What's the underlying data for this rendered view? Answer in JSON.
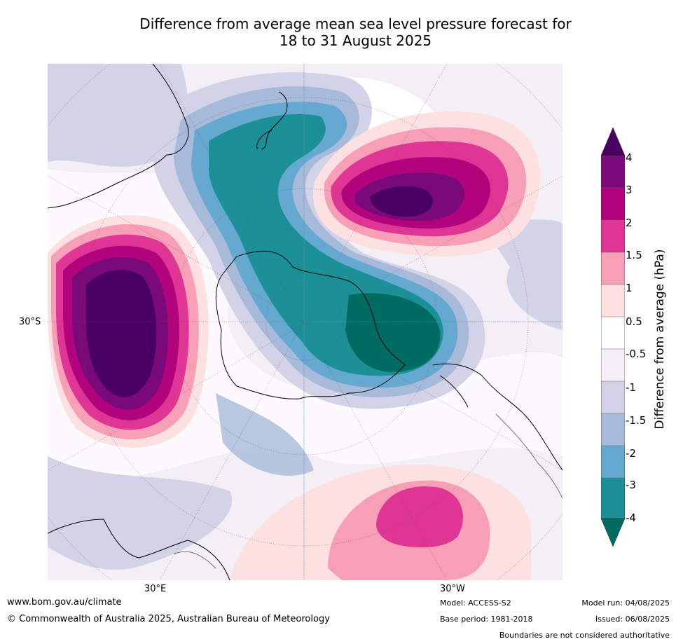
{
  "title_line1": "Difference from average mean sea level pressure forecast for",
  "title_line2": "18 to 31 August 2025",
  "ticks": {
    "left": "30°S",
    "bottom_left": "30°E",
    "bottom_right": "30°W"
  },
  "colorbar": {
    "title": "Difference from average (hPa)",
    "labels": [
      "4",
      "3",
      "2",
      "1.5",
      "1",
      "0.5",
      "-0.5",
      "-1",
      "-1.5",
      "-2",
      "-3",
      "-4"
    ],
    "colors": [
      "#4a0062",
      "#7a0a79",
      "#b1037c",
      "#df3594",
      "#f89fb8",
      "#fde0e0",
      "#ffffff",
      "#f4eff6",
      "#d2d3e7",
      "#a8bad9",
      "#65a9d0",
      "#1c9097",
      "#006b60"
    ]
  },
  "footer": {
    "url": "www.bom.gov.au/climate",
    "copyright": "© Commonwealth of Australia 2025, Australian Bureau of Meteorology",
    "model": "Model: ACCESS-S2",
    "base_period": "Base period: 1981-2018",
    "model_run": "Model run: 04/08/2025",
    "issued": "Issued: 06/08/2025",
    "disclaimer": "Boundaries are not considered authoritative"
  }
}
